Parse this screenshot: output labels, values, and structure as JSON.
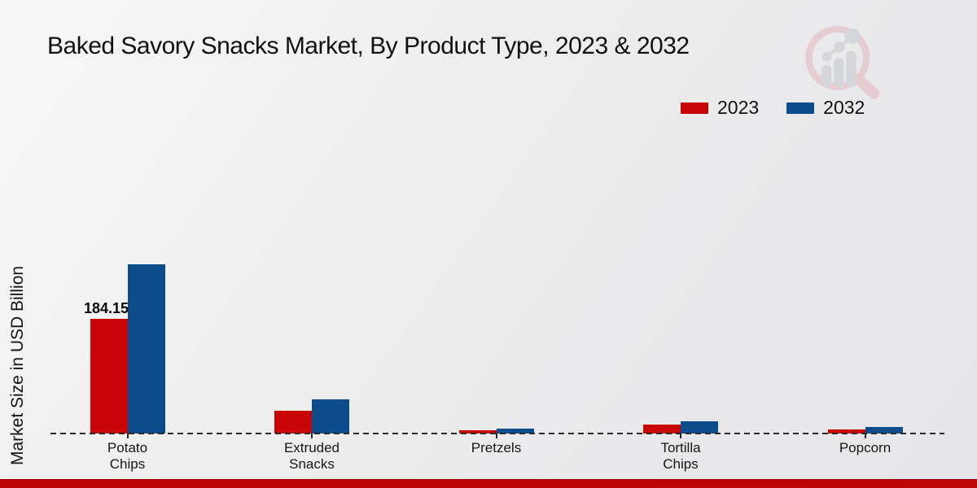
{
  "title": "Baked Savory Snacks Market, By Product Type, 2023 & 2032",
  "ylabel": "Market Size in USD Billion",
  "colors": {
    "series_2023": "#c80404",
    "series_2032": "#0b4c8c",
    "bottom_strip": "#bf0505",
    "text": "#111111",
    "background": "#ececee"
  },
  "icons": {
    "watermark": "magnifier-bar-chart-logo"
  },
  "legend": {
    "items": [
      {
        "label": "2023",
        "color": "#c80404"
      },
      {
        "label": "2032",
        "color": "#0b4c8c"
      }
    ]
  },
  "chart_data": {
    "type": "bar",
    "title": "Baked Savory Snacks Market, By Product Type, 2023 & 2032",
    "xlabel": "",
    "ylabel": "Market Size in USD Billion",
    "categories": [
      "Potato Chips",
      "Extruded Snacks",
      "Pretzels",
      "Tortilla Chips",
      "Popcorn"
    ],
    "series": [
      {
        "name": "2023",
        "color": "#c80404",
        "values": [
          184.15,
          36.2,
          5.2,
          13.7,
          6.8
        ],
        "value_labels": [
          "184.15",
          "",
          "",
          "",
          ""
        ]
      },
      {
        "name": "2032",
        "color": "#0b4c8c",
        "values": [
          271.5,
          54.4,
          7.2,
          18.9,
          9.8
        ],
        "value_labels": [
          "",
          "",
          "",
          "",
          ""
        ]
      }
    ],
    "ylim": [
      0,
      280
    ],
    "grid": false,
    "y_tick_labels_shown": false,
    "legend_position": "top-right",
    "baseline_style": "dashed"
  }
}
